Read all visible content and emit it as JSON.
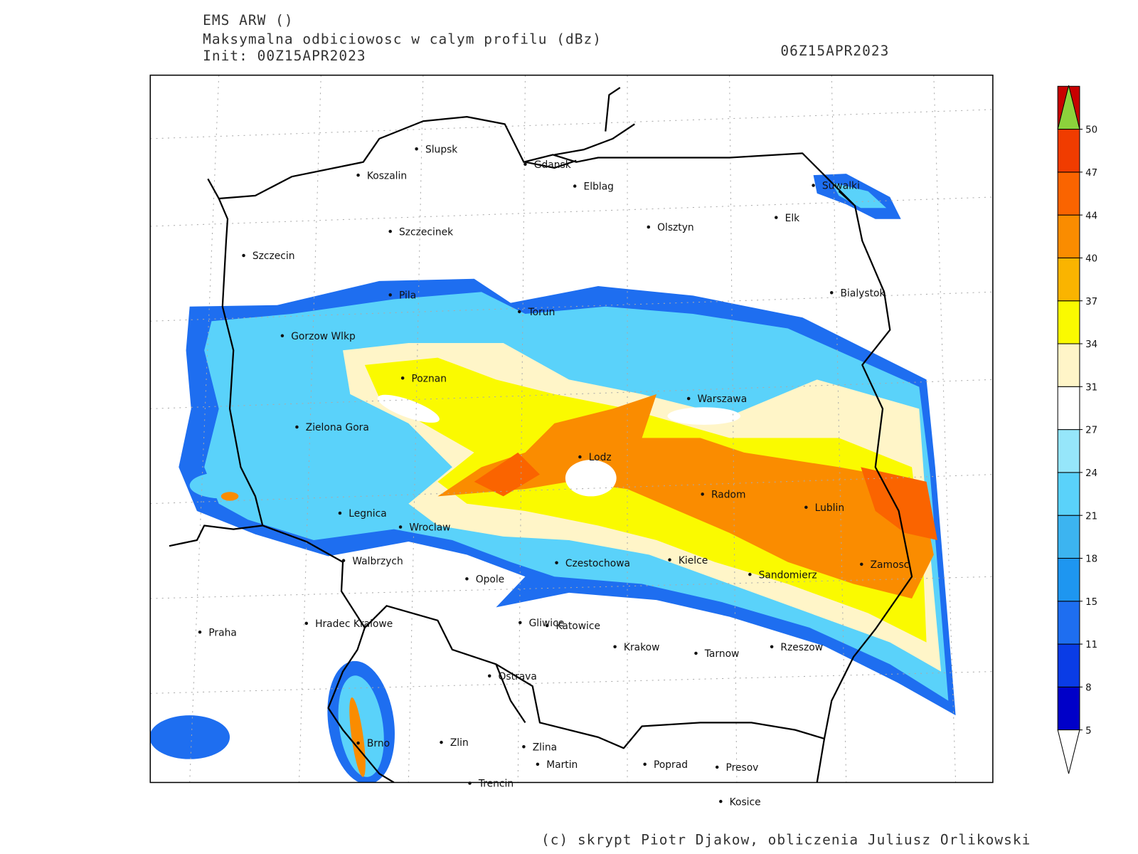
{
  "header": {
    "model": "EMS ARW ()",
    "title": "Maksymalna odbiciowosc w calym profilu (dBz)",
    "init": "Init: 00Z15APR2023",
    "valid": "06Z15APR2023"
  },
  "cities": [
    "Slupsk",
    "Koszalin",
    "Gdansk",
    "Elblag",
    "Suwalki",
    "Elk",
    "Szczecinek",
    "Olsztyn",
    "Szczecin",
    "Bialystok",
    "Pila",
    "Torun",
    "Gorzow Wlkp",
    "Poznan",
    "Warszawa",
    "Zielona Gora",
    "Lodz",
    "Radom",
    "Lublin",
    "Legnica",
    "Wroclaw",
    "Walbrzych",
    "Czestochowa",
    "Kielce",
    "Zamosc",
    "Opole",
    "Sandomierz",
    "Praha",
    "Hradec Kralowe",
    "Gliwice",
    "Katowice",
    "Krakow",
    "Tarnow",
    "Rzeszow",
    "Ostrava",
    "Brno",
    "Zlin",
    "Zlina",
    "Martin",
    "Poprad",
    "Presov",
    "Trencin",
    "Kosice"
  ],
  "colorbar": {
    "levels": [
      5,
      8,
      11,
      15,
      18,
      21,
      24,
      27,
      31,
      34,
      37,
      40,
      44,
      47,
      50
    ],
    "colors": [
      "#0000c8",
      "#0a3ce6",
      "#1e6ef0",
      "#1e96f0",
      "#3cb4f0",
      "#5ad2fa",
      "#96e6fa",
      "#ffffff",
      "#fff5c8",
      "#fafa00",
      "#fab400",
      "#fa8c00",
      "#fa6400",
      "#f03c00",
      "#c80000"
    ],
    "over_color": "#8cd23c",
    "under_color": "#ffffff"
  },
  "footer": "(c) skrypt Piotr Djakow, obliczenia Juliusz Orlikowski"
}
